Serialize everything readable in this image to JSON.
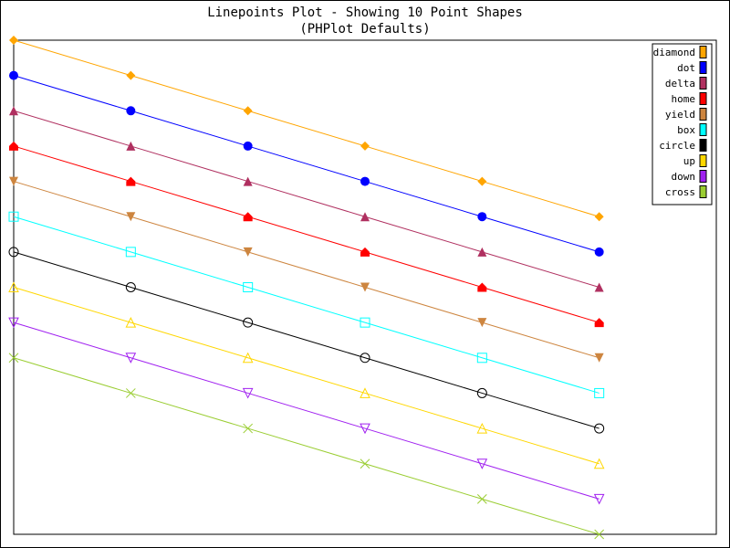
{
  "chart_data": {
    "type": "line",
    "title": "Linepoints Plot - Showing 10 Point Shapes\n(PHPlot Defaults)",
    "xlabel": "",
    "ylabel": "",
    "x": [
      0,
      1,
      2,
      3,
      4,
      5
    ],
    "xlim": [
      0,
      6
    ],
    "ylim": [
      0,
      14
    ],
    "grid": false,
    "legend_position": "top-right",
    "series": [
      {
        "name": "diamond",
        "shape": "diamond",
        "color": "#FFA500",
        "values": [
          14,
          13,
          12,
          11,
          10,
          9
        ]
      },
      {
        "name": "dot",
        "shape": "dot",
        "color": "#0000FF",
        "values": [
          13,
          12,
          11,
          10,
          9,
          8
        ]
      },
      {
        "name": "delta",
        "shape": "delta",
        "color": "#B03060",
        "values": [
          12,
          11,
          10,
          9,
          8,
          7
        ]
      },
      {
        "name": "home",
        "shape": "home",
        "color": "#FF0000",
        "values": [
          11,
          10,
          9,
          8,
          7,
          6
        ]
      },
      {
        "name": "yield",
        "shape": "yield",
        "color": "#CD853F",
        "values": [
          10,
          9,
          8,
          7,
          6,
          5
        ]
      },
      {
        "name": "box",
        "shape": "box",
        "color": "#00FFFF",
        "values": [
          9,
          8,
          7,
          6,
          5,
          4
        ]
      },
      {
        "name": "circle",
        "shape": "circle",
        "color": "#000000",
        "values": [
          8,
          7,
          6,
          5,
          4,
          3
        ]
      },
      {
        "name": "up",
        "shape": "up",
        "color": "#FFD700",
        "values": [
          7,
          6,
          5,
          4,
          3,
          2
        ]
      },
      {
        "name": "down",
        "shape": "down",
        "color": "#A020F0",
        "values": [
          6,
          5,
          4,
          3,
          2,
          1
        ]
      },
      {
        "name": "cross",
        "shape": "cross",
        "color": "#9ACD32",
        "values": [
          5,
          4,
          3,
          2,
          1,
          0
        ]
      }
    ]
  }
}
